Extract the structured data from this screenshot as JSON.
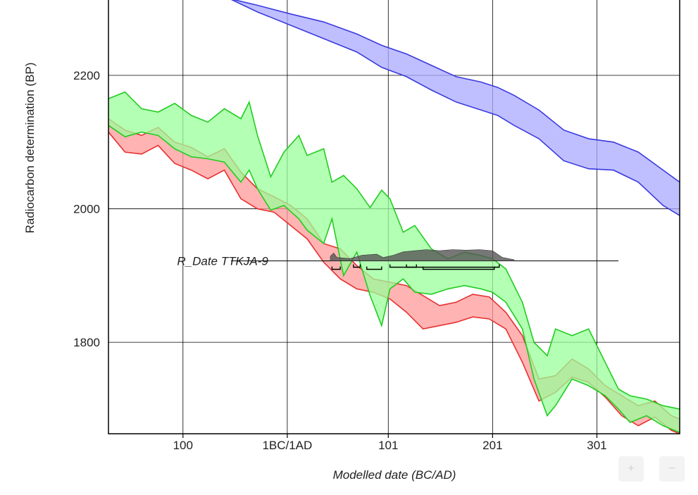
{
  "chart_data": {
    "type": "area",
    "xlabel": "Modelled date (BC/AD)",
    "ylabel": "Radiocarbon determination (BP)",
    "xlim": [
      30,
      375
    ],
    "ylim": [
      1663,
      2315
    ],
    "grid": true,
    "x_ticks": [
      {
        "value": 75,
        "label": "100"
      },
      {
        "value": 138,
        "label": "1BC/1AD"
      },
      {
        "value": 199,
        "label": "101"
      },
      {
        "value": 262,
        "label": "201"
      },
      {
        "value": 325,
        "label": "301"
      }
    ],
    "y_ticks": [
      {
        "value": 1800,
        "label": "1800"
      },
      {
        "value": 2000,
        "label": "2000"
      },
      {
        "value": 2200,
        "label": "2200"
      }
    ],
    "series": [
      {
        "color": "#3a3ae0",
        "fill": "#aaaaff",
        "x": [
          103,
          120,
          140,
          160,
          180,
          195,
          210,
          225,
          240,
          255,
          265,
          275,
          290,
          305,
          320,
          335,
          350,
          365,
          375
        ],
        "upper": [
          2315,
          2305,
          2292,
          2280,
          2262,
          2245,
          2232,
          2215,
          2198,
          2190,
          2182,
          2170,
          2148,
          2118,
          2105,
          2100,
          2085,
          2058,
          2040
        ],
        "lower": [
          2315,
          2295,
          2275,
          2255,
          2235,
          2212,
          2198,
          2178,
          2160,
          2148,
          2140,
          2125,
          2105,
          2072,
          2060,
          2058,
          2040,
          2005,
          1990
        ]
      },
      {
        "color": "#e83030",
        "fill": "#ff9a9a",
        "x": [
          30,
          40,
          50,
          60,
          70,
          80,
          90,
          100,
          110,
          120,
          130,
          140,
          150,
          160,
          170,
          180,
          190,
          200,
          210,
          220,
          230,
          240,
          250,
          260,
          270,
          280,
          290,
          300,
          310,
          320,
          330,
          340,
          350,
          360,
          370,
          375
        ],
        "upper": [
          2135,
          2118,
          2110,
          2122,
          2100,
          2092,
          2078,
          2090,
          2055,
          2030,
          2018,
          2005,
          1985,
          1948,
          1940,
          1915,
          1895,
          1890,
          1885,
          1870,
          1855,
          1860,
          1872,
          1868,
          1845,
          1810,
          1745,
          1750,
          1775,
          1760,
          1735,
          1720,
          1705,
          1712,
          1690,
          1685
        ],
        "lower": [
          2115,
          2085,
          2082,
          2095,
          2068,
          2058,
          2045,
          2058,
          2015,
          2000,
          1995,
          1975,
          1955,
          1920,
          1895,
          1880,
          1875,
          1865,
          1845,
          1820,
          1825,
          1830,
          1838,
          1835,
          1820,
          1770,
          1712,
          1725,
          1748,
          1740,
          1718,
          1690,
          1675,
          1688,
          1668,
          1663
        ]
      },
      {
        "color": "#22cc22",
        "fill": "#99ff99",
        "x": [
          30,
          40,
          50,
          60,
          70,
          80,
          90,
          100,
          110,
          115,
          120,
          128,
          136,
          145,
          150,
          160,
          165,
          172,
          180,
          188,
          195,
          200,
          208,
          215,
          225,
          235,
          245,
          255,
          262,
          270,
          280,
          287,
          295,
          300,
          310,
          320,
          330,
          338,
          345,
          355,
          365,
          375
        ],
        "upper": [
          2165,
          2175,
          2150,
          2145,
          2158,
          2140,
          2130,
          2150,
          2135,
          2160,
          2110,
          2048,
          2085,
          2110,
          2080,
          2090,
          2040,
          2050,
          2030,
          2002,
          2028,
          2015,
          1965,
          1975,
          1940,
          1925,
          1935,
          1930,
          1925,
          1910,
          1860,
          1800,
          1780,
          1820,
          1810,
          1820,
          1770,
          1730,
          1720,
          1715,
          1705,
          1700
        ],
        "lower": [
          2125,
          2108,
          2115,
          2110,
          2090,
          2078,
          2075,
          2070,
          2040,
          2058,
          2030,
          1998,
          2005,
          1985,
          1968,
          1948,
          1985,
          1900,
          1935,
          1870,
          1825,
          1880,
          1895,
          1875,
          1872,
          1880,
          1885,
          1880,
          1875,
          1860,
          1820,
          1745,
          1690,
          1705,
          1745,
          1735,
          1720,
          1700,
          1680,
          1690,
          1675,
          1665
        ]
      }
    ],
    "annotations": [
      {
        "label": "R_Date TTKJA-9",
        "value": 1922,
        "x_range": [
          71,
          338
        ],
        "probability": [
          {
            "x": 164,
            "p": 0.4
          },
          {
            "x": 166,
            "p": 0.7
          },
          {
            "x": 168,
            "p": 0.3
          },
          {
            "x": 176,
            "p": 0.2
          },
          {
            "x": 183,
            "p": 0.5
          },
          {
            "x": 192,
            "p": 0.6
          },
          {
            "x": 196,
            "p": 0.3
          },
          {
            "x": 202,
            "p": 0.5
          },
          {
            "x": 208,
            "p": 0.8
          },
          {
            "x": 215,
            "p": 0.9
          },
          {
            "x": 222,
            "p": 1.0
          },
          {
            "x": 230,
            "p": 0.9
          },
          {
            "x": 238,
            "p": 1.0
          },
          {
            "x": 246,
            "p": 0.95
          },
          {
            "x": 254,
            "p": 1.0
          },
          {
            "x": 262,
            "p": 0.9
          },
          {
            "x": 268,
            "p": 0.3
          },
          {
            "x": 275,
            "p": 0.1
          }
        ],
        "ranges": [
          [
            165,
            170
          ],
          [
            178,
            182
          ],
          [
            186,
            195
          ],
          [
            200,
            216
          ],
          [
            220,
            263
          ],
          [
            210,
            266
          ]
        ]
      }
    ]
  }
}
